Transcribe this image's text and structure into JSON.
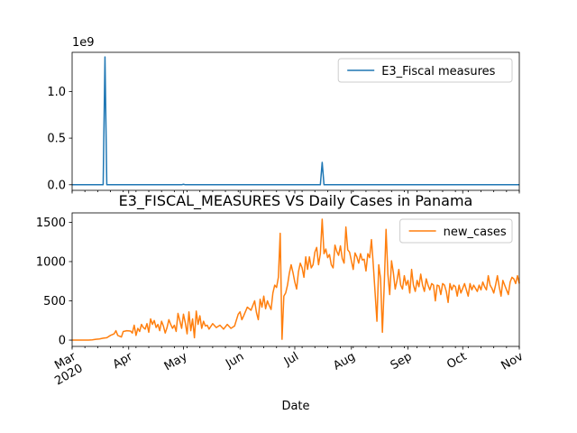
{
  "chart_data": [
    {
      "type": "line",
      "series": [
        {
          "name": "E3_Fiscal measures",
          "color": "#1f77b4",
          "points": [
            [
              "2020-03-01",
              0
            ],
            [
              "2020-03-18",
              0
            ],
            [
              "2020-03-19",
              1370000000
            ],
            [
              "2020-03-20",
              0
            ],
            [
              "2020-04-30",
              0
            ],
            [
              "2020-05-01",
              5000000
            ],
            [
              "2020-05-02",
              0
            ],
            [
              "2020-07-15",
              0
            ],
            [
              "2020-07-16",
              240000000
            ],
            [
              "2020-07-17",
              0
            ],
            [
              "2020-11-01",
              0
            ]
          ]
        }
      ],
      "ylim": [
        -60000000,
        1420000000
      ],
      "yticks": [
        0,
        500000000,
        1000000000
      ],
      "ytick_labels": [
        "0.0",
        "0.5",
        "1.0"
      ],
      "offset_label": "1e9",
      "legend_placement": "upper right"
    },
    {
      "type": "line",
      "title": "E3_FISCAL_MEASURES VS Daily Cases in Panama",
      "xlabel": "Date",
      "x_range": [
        "2020-03-01",
        "2020-11-01"
      ],
      "x_tick_dates": [
        "2020-03-01",
        "2020-04-01",
        "2020-05-01",
        "2020-06-01",
        "2020-07-01",
        "2020-08-01",
        "2020-09-01",
        "2020-10-01",
        "2020-11-01"
      ],
      "x_tick_labels": [
        "Mar\n2020",
        "Apr",
        "May",
        "Jun",
        "Jul",
        "Aug",
        "Sep",
        "Oct",
        "Nov"
      ],
      "ylim": [
        -80,
        1620
      ],
      "yticks": [
        0,
        500,
        1000,
        1500
      ],
      "ytick_labels": [
        "0",
        "500",
        "1000",
        "1500"
      ],
      "legend_placement": "upper right",
      "series": [
        {
          "name": "new_cases",
          "color": "#ff7f0e",
          "points": [
            [
              "2020-03-01",
              0
            ],
            [
              "2020-03-05",
              0
            ],
            [
              "2020-03-09",
              0
            ],
            [
              "2020-03-10",
              1
            ],
            [
              "2020-03-12",
              3
            ],
            [
              "2020-03-14",
              10
            ],
            [
              "2020-03-16",
              15
            ],
            [
              "2020-03-18",
              25
            ],
            [
              "2020-03-20",
              30
            ],
            [
              "2020-03-22",
              60
            ],
            [
              "2020-03-24",
              80
            ],
            [
              "2020-03-25",
              120
            ],
            [
              "2020-03-26",
              60
            ],
            [
              "2020-03-28",
              40
            ],
            [
              "2020-03-29",
              110
            ],
            [
              "2020-03-31",
              120
            ],
            [
              "2020-04-02",
              115
            ],
            [
              "2020-04-03",
              90
            ],
            [
              "2020-04-04",
              190
            ],
            [
              "2020-04-05",
              60
            ],
            [
              "2020-04-06",
              150
            ],
            [
              "2020-04-07",
              110
            ],
            [
              "2020-04-08",
              200
            ],
            [
              "2020-04-09",
              160
            ],
            [
              "2020-04-10",
              140
            ],
            [
              "2020-04-11",
              210
            ],
            [
              "2020-04-12",
              100
            ],
            [
              "2020-04-13",
              270
            ],
            [
              "2020-04-14",
              200
            ],
            [
              "2020-04-15",
              250
            ],
            [
              "2020-04-16",
              160
            ],
            [
              "2020-04-17",
              200
            ],
            [
              "2020-04-18",
              120
            ],
            [
              "2020-04-19",
              240
            ],
            [
              "2020-04-20",
              180
            ],
            [
              "2020-04-21",
              90
            ],
            [
              "2020-04-22",
              160
            ],
            [
              "2020-04-23",
              260
            ],
            [
              "2020-04-24",
              200
            ],
            [
              "2020-04-25",
              150
            ],
            [
              "2020-04-26",
              190
            ],
            [
              "2020-04-27",
              110
            ],
            [
              "2020-04-28",
              340
            ],
            [
              "2020-04-29",
              250
            ],
            [
              "2020-04-30",
              150
            ],
            [
              "2020-05-01",
              330
            ],
            [
              "2020-05-02",
              220
            ],
            [
              "2020-05-03",
              80
            ],
            [
              "2020-05-04",
              360
            ],
            [
              "2020-05-05",
              120
            ],
            [
              "2020-05-06",
              270
            ],
            [
              "2020-05-07",
              30
            ],
            [
              "2020-05-08",
              370
            ],
            [
              "2020-05-09",
              200
            ],
            [
              "2020-05-10",
              310
            ],
            [
              "2020-05-11",
              150
            ],
            [
              "2020-05-12",
              240
            ],
            [
              "2020-05-13",
              180
            ],
            [
              "2020-05-14",
              190
            ],
            [
              "2020-05-15",
              140
            ],
            [
              "2020-05-17",
              210
            ],
            [
              "2020-05-19",
              160
            ],
            [
              "2020-05-21",
              190
            ],
            [
              "2020-05-23",
              140
            ],
            [
              "2020-05-25",
              200
            ],
            [
              "2020-05-27",
              150
            ],
            [
              "2020-05-29",
              180
            ],
            [
              "2020-05-31",
              330
            ],
            [
              "2020-06-01",
              360
            ],
            [
              "2020-06-02",
              260
            ],
            [
              "2020-06-03",
              310
            ],
            [
              "2020-06-05",
              420
            ],
            [
              "2020-06-07",
              380
            ],
            [
              "2020-06-09",
              500
            ],
            [
              "2020-06-10",
              350
            ],
            [
              "2020-06-11",
              260
            ],
            [
              "2020-06-12",
              520
            ],
            [
              "2020-06-13",
              420
            ],
            [
              "2020-06-14",
              560
            ],
            [
              "2020-06-15",
              400
            ],
            [
              "2020-06-16",
              500
            ],
            [
              "2020-06-17",
              440
            ],
            [
              "2020-06-18",
              390
            ],
            [
              "2020-06-19",
              600
            ],
            [
              "2020-06-20",
              700
            ],
            [
              "2020-06-21",
              670
            ],
            [
              "2020-06-22",
              800
            ],
            [
              "2020-06-23",
              1360
            ],
            [
              "2020-06-24",
              10
            ],
            [
              "2020-06-25",
              560
            ],
            [
              "2020-06-26",
              600
            ],
            [
              "2020-06-27",
              700
            ],
            [
              "2020-06-28",
              850
            ],
            [
              "2020-06-29",
              960
            ],
            [
              "2020-06-30",
              860
            ],
            [
              "2020-07-01",
              740
            ],
            [
              "2020-07-02",
              650
            ],
            [
              "2020-07-03",
              870
            ],
            [
              "2020-07-04",
              980
            ],
            [
              "2020-07-05",
              920
            ],
            [
              "2020-07-06",
              800
            ],
            [
              "2020-07-07",
              1060
            ],
            [
              "2020-07-08",
              900
            ],
            [
              "2020-07-09",
              1060
            ],
            [
              "2020-07-10",
              920
            ],
            [
              "2020-07-11",
              960
            ],
            [
              "2020-07-12",
              1120
            ],
            [
              "2020-07-13",
              1180
            ],
            [
              "2020-07-14",
              960
            ],
            [
              "2020-07-15",
              1100
            ],
            [
              "2020-07-16",
              1540
            ],
            [
              "2020-07-17",
              1100
            ],
            [
              "2020-07-18",
              1160
            ],
            [
              "2020-07-19",
              1050
            ],
            [
              "2020-07-20",
              1090
            ],
            [
              "2020-07-21",
              960
            ],
            [
              "2020-07-22",
              920
            ],
            [
              "2020-07-23",
              1210
            ],
            [
              "2020-07-24",
              1130
            ],
            [
              "2020-07-25",
              1080
            ],
            [
              "2020-07-26",
              1200
            ],
            [
              "2020-07-27",
              1040
            ],
            [
              "2020-07-28",
              980
            ],
            [
              "2020-07-29",
              1440
            ],
            [
              "2020-07-30",
              1150
            ],
            [
              "2020-07-31",
              1120
            ],
            [
              "2020-08-01",
              1010
            ],
            [
              "2020-08-02",
              900
            ],
            [
              "2020-08-03",
              1110
            ],
            [
              "2020-08-04",
              1060
            ],
            [
              "2020-08-05",
              980
            ],
            [
              "2020-08-06",
              1100
            ],
            [
              "2020-08-07",
              1020
            ],
            [
              "2020-08-08",
              1030
            ],
            [
              "2020-08-09",
              880
            ],
            [
              "2020-08-10",
              1100
            ],
            [
              "2020-08-11",
              1050
            ],
            [
              "2020-08-12",
              1280
            ],
            [
              "2020-08-13",
              960
            ],
            [
              "2020-08-14",
              600
            ],
            [
              "2020-08-15",
              240
            ],
            [
              "2020-08-16",
              960
            ],
            [
              "2020-08-17",
              780
            ],
            [
              "2020-08-18",
              100
            ],
            [
              "2020-08-19",
              700
            ],
            [
              "2020-08-20",
              1410
            ],
            [
              "2020-08-21",
              840
            ],
            [
              "2020-08-22",
              580
            ],
            [
              "2020-08-23",
              1010
            ],
            [
              "2020-08-24",
              860
            ],
            [
              "2020-08-25",
              650
            ],
            [
              "2020-08-26",
              760
            ],
            [
              "2020-08-27",
              900
            ],
            [
              "2020-08-28",
              700
            ],
            [
              "2020-08-29",
              650
            ],
            [
              "2020-08-30",
              820
            ],
            [
              "2020-08-31",
              700
            ],
            [
              "2020-09-01",
              760
            ],
            [
              "2020-09-02",
              600
            ],
            [
              "2020-09-03",
              900
            ],
            [
              "2020-09-04",
              700
            ],
            [
              "2020-09-05",
              620
            ],
            [
              "2020-09-06",
              760
            ],
            [
              "2020-09-07",
              680
            ],
            [
              "2020-09-08",
              840
            ],
            [
              "2020-09-09",
              700
            ],
            [
              "2020-09-10",
              620
            ],
            [
              "2020-09-11",
              780
            ],
            [
              "2020-09-12",
              700
            ],
            [
              "2020-09-13",
              640
            ],
            [
              "2020-09-14",
              720
            ],
            [
              "2020-09-15",
              700
            ],
            [
              "2020-09-16",
              500
            ],
            [
              "2020-09-17",
              700
            ],
            [
              "2020-09-18",
              690
            ],
            [
              "2020-09-19",
              580
            ],
            [
              "2020-09-20",
              720
            ],
            [
              "2020-09-21",
              700
            ],
            [
              "2020-09-22",
              620
            ],
            [
              "2020-09-23",
              480
            ],
            [
              "2020-09-24",
              720
            ],
            [
              "2020-09-25",
              640
            ],
            [
              "2020-09-26",
              700
            ],
            [
              "2020-09-27",
              680
            ],
            [
              "2020-09-28",
              560
            ],
            [
              "2020-09-29",
              700
            ],
            [
              "2020-09-30",
              600
            ],
            [
              "2020-10-01",
              660
            ],
            [
              "2020-10-02",
              720
            ],
            [
              "2020-10-03",
              640
            ],
            [
              "2020-10-04",
              560
            ],
            [
              "2020-10-05",
              720
            ],
            [
              "2020-10-06",
              640
            ],
            [
              "2020-10-07",
              700
            ],
            [
              "2020-10-08",
              660
            ],
            [
              "2020-10-09",
              620
            ],
            [
              "2020-10-10",
              700
            ],
            [
              "2020-10-11",
              640
            ],
            [
              "2020-10-12",
              740
            ],
            [
              "2020-10-13",
              680
            ],
            [
              "2020-10-14",
              640
            ],
            [
              "2020-10-15",
              820
            ],
            [
              "2020-10-16",
              700
            ],
            [
              "2020-10-17",
              660
            ],
            [
              "2020-10-18",
              600
            ],
            [
              "2020-10-19",
              700
            ],
            [
              "2020-10-20",
              820
            ],
            [
              "2020-10-21",
              680
            ],
            [
              "2020-10-22",
              560
            ],
            [
              "2020-10-23",
              760
            ],
            [
              "2020-10-24",
              700
            ],
            [
              "2020-10-25",
              640
            ],
            [
              "2020-10-26",
              580
            ],
            [
              "2020-10-27",
              740
            ],
            [
              "2020-10-28",
              800
            ],
            [
              "2020-10-29",
              780
            ],
            [
              "2020-10-30",
              720
            ],
            [
              "2020-10-31",
              820
            ],
            [
              "2020-11-01",
              720
            ]
          ]
        }
      ]
    }
  ]
}
